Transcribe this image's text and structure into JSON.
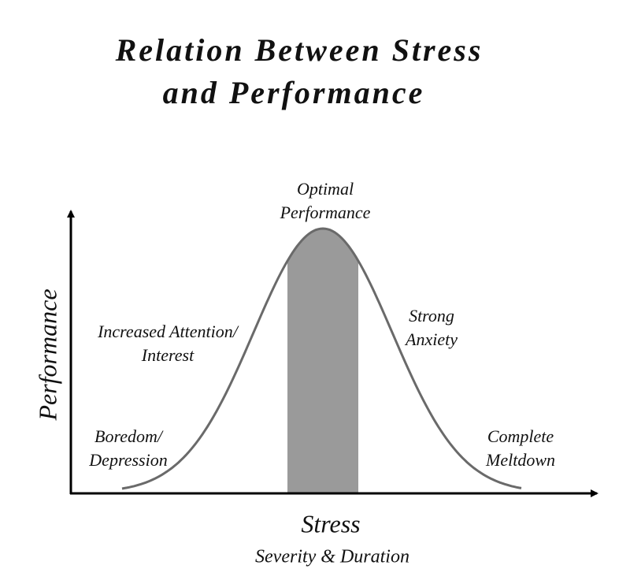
{
  "title": {
    "lines": [
      "Relation Between Stress",
      "and Performance"
    ]
  },
  "axes": {
    "y_label": "Performance",
    "x_label": "Stress",
    "x_sublabel": "Severity & Duration"
  },
  "zones": [
    {
      "lines": [
        "Boredom/",
        "Depression"
      ]
    },
    {
      "lines": [
        "Increased Attention/",
        "Interest"
      ]
    },
    {
      "lines": [
        "Optimal",
        "Performance"
      ]
    },
    {
      "lines": [
        "Strong",
        "Anxiety"
      ]
    },
    {
      "lines": [
        "Complete",
        "Meltdown"
      ]
    }
  ]
}
